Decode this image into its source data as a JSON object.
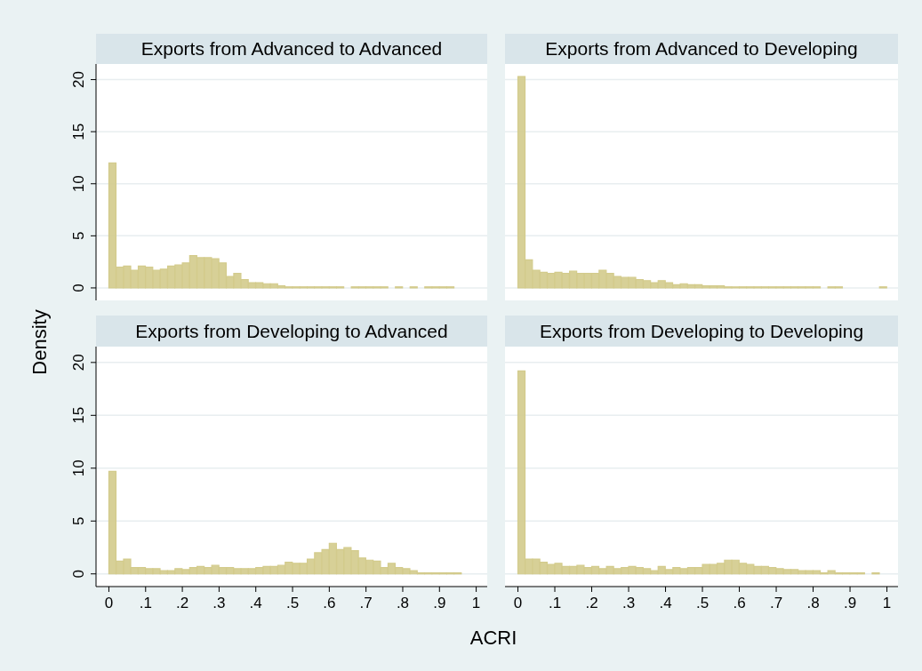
{
  "chart_data": [
    {
      "type": "histogram",
      "title": "Exports from Advanced to Advanced",
      "ylabel": "Density",
      "color": "#d3cb8c",
      "grid": "y",
      "tick_labels": "y",
      "xlim": [
        -0.035,
        1.03
      ],
      "ylim": [
        -1.2,
        21.5
      ],
      "yticks": [
        0,
        5,
        10,
        15,
        20
      ],
      "bins": [
        0,
        0.02,
        0.04,
        0.06,
        0.08,
        0.1,
        0.12,
        0.14,
        0.16,
        0.18,
        0.2,
        0.22,
        0.24,
        0.26,
        0.28,
        0.3,
        0.32,
        0.34,
        0.36,
        0.38,
        0.4,
        0.42,
        0.44,
        0.46,
        0.48,
        0.5,
        0.52,
        0.54,
        0.56,
        0.58,
        0.6,
        0.62,
        0.64,
        0.66,
        0.68,
        0.7,
        0.72,
        0.74,
        0.76,
        0.78,
        0.8,
        0.82,
        0.84,
        0.86,
        0.88,
        0.9,
        0.92,
        0.94,
        0.96,
        0.98,
        1
      ],
      "values": [
        12.0,
        2.0,
        2.1,
        1.7,
        2.1,
        2.0,
        1.7,
        1.8,
        2.1,
        2.2,
        2.4,
        3.1,
        2.9,
        2.9,
        2.8,
        2.4,
        1.1,
        1.4,
        0.8,
        0.5,
        0.5,
        0.4,
        0.4,
        0.2,
        0.1,
        0.1,
        0.1,
        0.1,
        0.1,
        0.1,
        0.1,
        0.1,
        0,
        0.1,
        0.1,
        0.1,
        0.1,
        0.1,
        0,
        0.1,
        0,
        0.1,
        0,
        0.1,
        0.1,
        0.1,
        0.1,
        0,
        0,
        0
      ]
    },
    {
      "type": "histogram",
      "title": "Exports from Advanced to Developing",
      "color": "#d3cb8c",
      "grid": "y",
      "tick_labels": false,
      "xlim": [
        -0.035,
        1.03
      ],
      "ylim": [
        -1.2,
        21.5
      ],
      "yticks": [
        0,
        5,
        10,
        15,
        20
      ],
      "bins": [
        0,
        0.02,
        0.04,
        0.06,
        0.08,
        0.1,
        0.12,
        0.14,
        0.16,
        0.18,
        0.2,
        0.22,
        0.24,
        0.26,
        0.28,
        0.3,
        0.32,
        0.34,
        0.36,
        0.38,
        0.4,
        0.42,
        0.44,
        0.46,
        0.48,
        0.5,
        0.52,
        0.54,
        0.56,
        0.58,
        0.6,
        0.62,
        0.64,
        0.66,
        0.68,
        0.7,
        0.72,
        0.74,
        0.76,
        0.78,
        0.8,
        0.82,
        0.84,
        0.86,
        0.88,
        0.9,
        0.92,
        0.94,
        0.96,
        0.98,
        1
      ],
      "values": [
        20.3,
        2.7,
        1.7,
        1.5,
        1.4,
        1.5,
        1.4,
        1.6,
        1.4,
        1.4,
        1.4,
        1.7,
        1.4,
        1.1,
        1.0,
        1.0,
        0.8,
        0.7,
        0.5,
        0.7,
        0.5,
        0.3,
        0.4,
        0.3,
        0.3,
        0.2,
        0.2,
        0.2,
        0.1,
        0.1,
        0.1,
        0.1,
        0.1,
        0.1,
        0.1,
        0.1,
        0.1,
        0.1,
        0.1,
        0.1,
        0.1,
        0,
        0.1,
        0.1,
        0,
        0,
        0,
        0,
        0,
        0.1
      ]
    },
    {
      "type": "histogram",
      "title": "Exports from Developing to Advanced",
      "xlabel": "ACRI",
      "color": "#d3cb8c",
      "grid": "y",
      "xlim": [
        -0.035,
        1.03
      ],
      "ylim": [
        -1.2,
        21.5
      ],
      "yticks": [
        0,
        5,
        10,
        15,
        20
      ],
      "xticks": [
        {
          "value": 0,
          "label": "0"
        },
        {
          "value": 0.1,
          "label": ".1"
        },
        {
          "value": 0.2,
          "label": ".2"
        },
        {
          "value": 0.3,
          "label": ".3"
        },
        {
          "value": 0.4,
          "label": ".4"
        },
        {
          "value": 0.5,
          "label": ".5"
        },
        {
          "value": 0.6,
          "label": ".6"
        },
        {
          "value": 0.7,
          "label": ".7"
        },
        {
          "value": 0.8,
          "label": ".8"
        },
        {
          "value": 0.9,
          "label": ".9"
        },
        {
          "value": 1,
          "label": "1"
        }
      ],
      "bins": [
        0,
        0.02,
        0.04,
        0.06,
        0.08,
        0.1,
        0.12,
        0.14,
        0.16,
        0.18,
        0.2,
        0.22,
        0.24,
        0.26,
        0.28,
        0.3,
        0.32,
        0.34,
        0.36,
        0.38,
        0.4,
        0.42,
        0.44,
        0.46,
        0.48,
        0.5,
        0.52,
        0.54,
        0.56,
        0.58,
        0.6,
        0.62,
        0.64,
        0.66,
        0.68,
        0.7,
        0.72,
        0.74,
        0.76,
        0.78,
        0.8,
        0.82,
        0.84,
        0.86,
        0.88,
        0.9,
        0.92,
        0.94,
        0.96,
        0.98,
        1
      ],
      "values": [
        9.7,
        1.2,
        1.4,
        0.6,
        0.6,
        0.5,
        0.5,
        0.3,
        0.3,
        0.5,
        0.4,
        0.6,
        0.7,
        0.6,
        0.8,
        0.6,
        0.6,
        0.5,
        0.5,
        0.5,
        0.6,
        0.7,
        0.7,
        0.8,
        1.1,
        1.0,
        1.0,
        1.4,
        2.0,
        2.3,
        2.9,
        2.3,
        2.5,
        2.2,
        1.5,
        1.3,
        1.2,
        0.6,
        1.0,
        0.6,
        0.5,
        0.3,
        0.1,
        0.1,
        0.1,
        0.1,
        0.1,
        0.1,
        0,
        0
      ]
    },
    {
      "type": "histogram",
      "title": "Exports from Developing to Developing",
      "color": "#d3cb8c",
      "grid": "y",
      "tick_labels": "x",
      "xlim": [
        -0.035,
        1.03
      ],
      "ylim": [
        -1.2,
        21.5
      ],
      "yticks": [
        0,
        5,
        10,
        15,
        20
      ],
      "xticks": [
        {
          "value": 0,
          "label": "0"
        },
        {
          "value": 0.1,
          "label": ".1"
        },
        {
          "value": 0.2,
          "label": ".2"
        },
        {
          "value": 0.3,
          "label": ".3"
        },
        {
          "value": 0.4,
          "label": ".4"
        },
        {
          "value": 0.5,
          "label": ".5"
        },
        {
          "value": 0.6,
          "label": ".6"
        },
        {
          "value": 0.7,
          "label": ".7"
        },
        {
          "value": 0.8,
          "label": ".8"
        },
        {
          "value": 0.9,
          "label": ".9"
        },
        {
          "value": 1,
          "label": "1"
        }
      ],
      "bins": [
        0,
        0.02,
        0.04,
        0.06,
        0.08,
        0.1,
        0.12,
        0.14,
        0.16,
        0.18,
        0.2,
        0.22,
        0.24,
        0.26,
        0.28,
        0.3,
        0.32,
        0.34,
        0.36,
        0.38,
        0.4,
        0.42,
        0.44,
        0.46,
        0.48,
        0.5,
        0.52,
        0.54,
        0.56,
        0.58,
        0.6,
        0.62,
        0.64,
        0.66,
        0.68,
        0.7,
        0.72,
        0.74,
        0.76,
        0.78,
        0.8,
        0.82,
        0.84,
        0.86,
        0.88,
        0.9,
        0.92,
        0.94,
        0.96,
        0.98,
        1
      ],
      "values": [
        19.2,
        1.4,
        1.4,
        1.1,
        0.9,
        1.0,
        0.7,
        0.7,
        0.8,
        0.6,
        0.7,
        0.5,
        0.7,
        0.5,
        0.6,
        0.7,
        0.6,
        0.5,
        0.3,
        0.7,
        0.4,
        0.6,
        0.5,
        0.6,
        0.6,
        0.9,
        0.9,
        1.0,
        1.3,
        1.3,
        1.0,
        0.9,
        0.7,
        0.7,
        0.6,
        0.5,
        0.4,
        0.4,
        0.3,
        0.3,
        0.3,
        0.1,
        0.3,
        0.1,
        0.1,
        0.1,
        0.1,
        0,
        0.1,
        0
      ]
    }
  ]
}
